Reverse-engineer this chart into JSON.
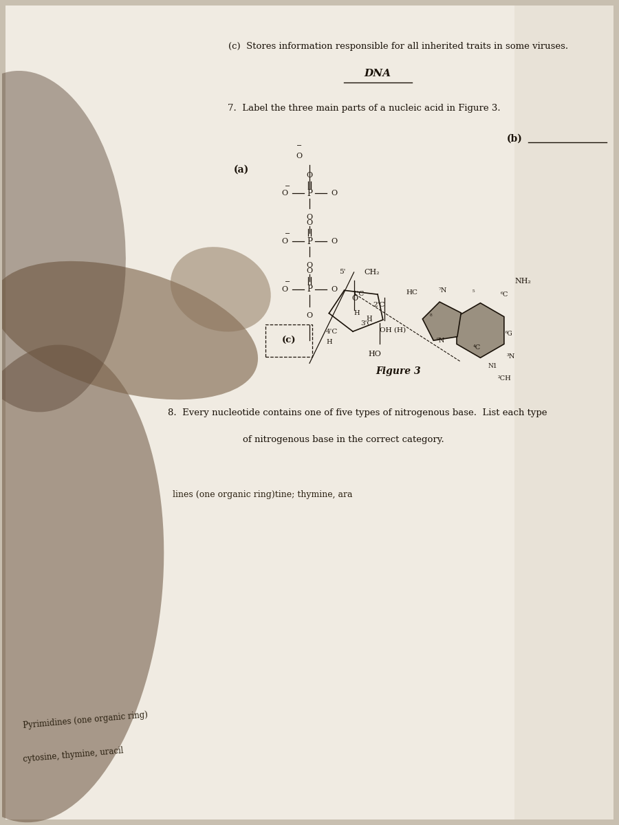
{
  "bg_color": "#c8bfb0",
  "page_bg_light": "#f0ebe2",
  "page_bg_dark": "#ddd5c8",
  "text_color": "#1a1209",
  "title_c": "(c)  Stores information responsible for all inherited traits in some viruses.",
  "title_answer": "DNA",
  "q7_text": "7.  Label the three main parts of a nucleic acid in Figure 3.",
  "label_a": "(a)",
  "label_b": "(b)",
  "label_c": "(c)",
  "fig_label": "Figure 3",
  "q8_line1": "8.  Every nucleotide contains one of five types of nitrogenous base.  List each type",
  "q8_line2": "of nitrogenous base in the correct category.",
  "q8_sub": "lines (one organic ring)tine; thymine, ara"
}
